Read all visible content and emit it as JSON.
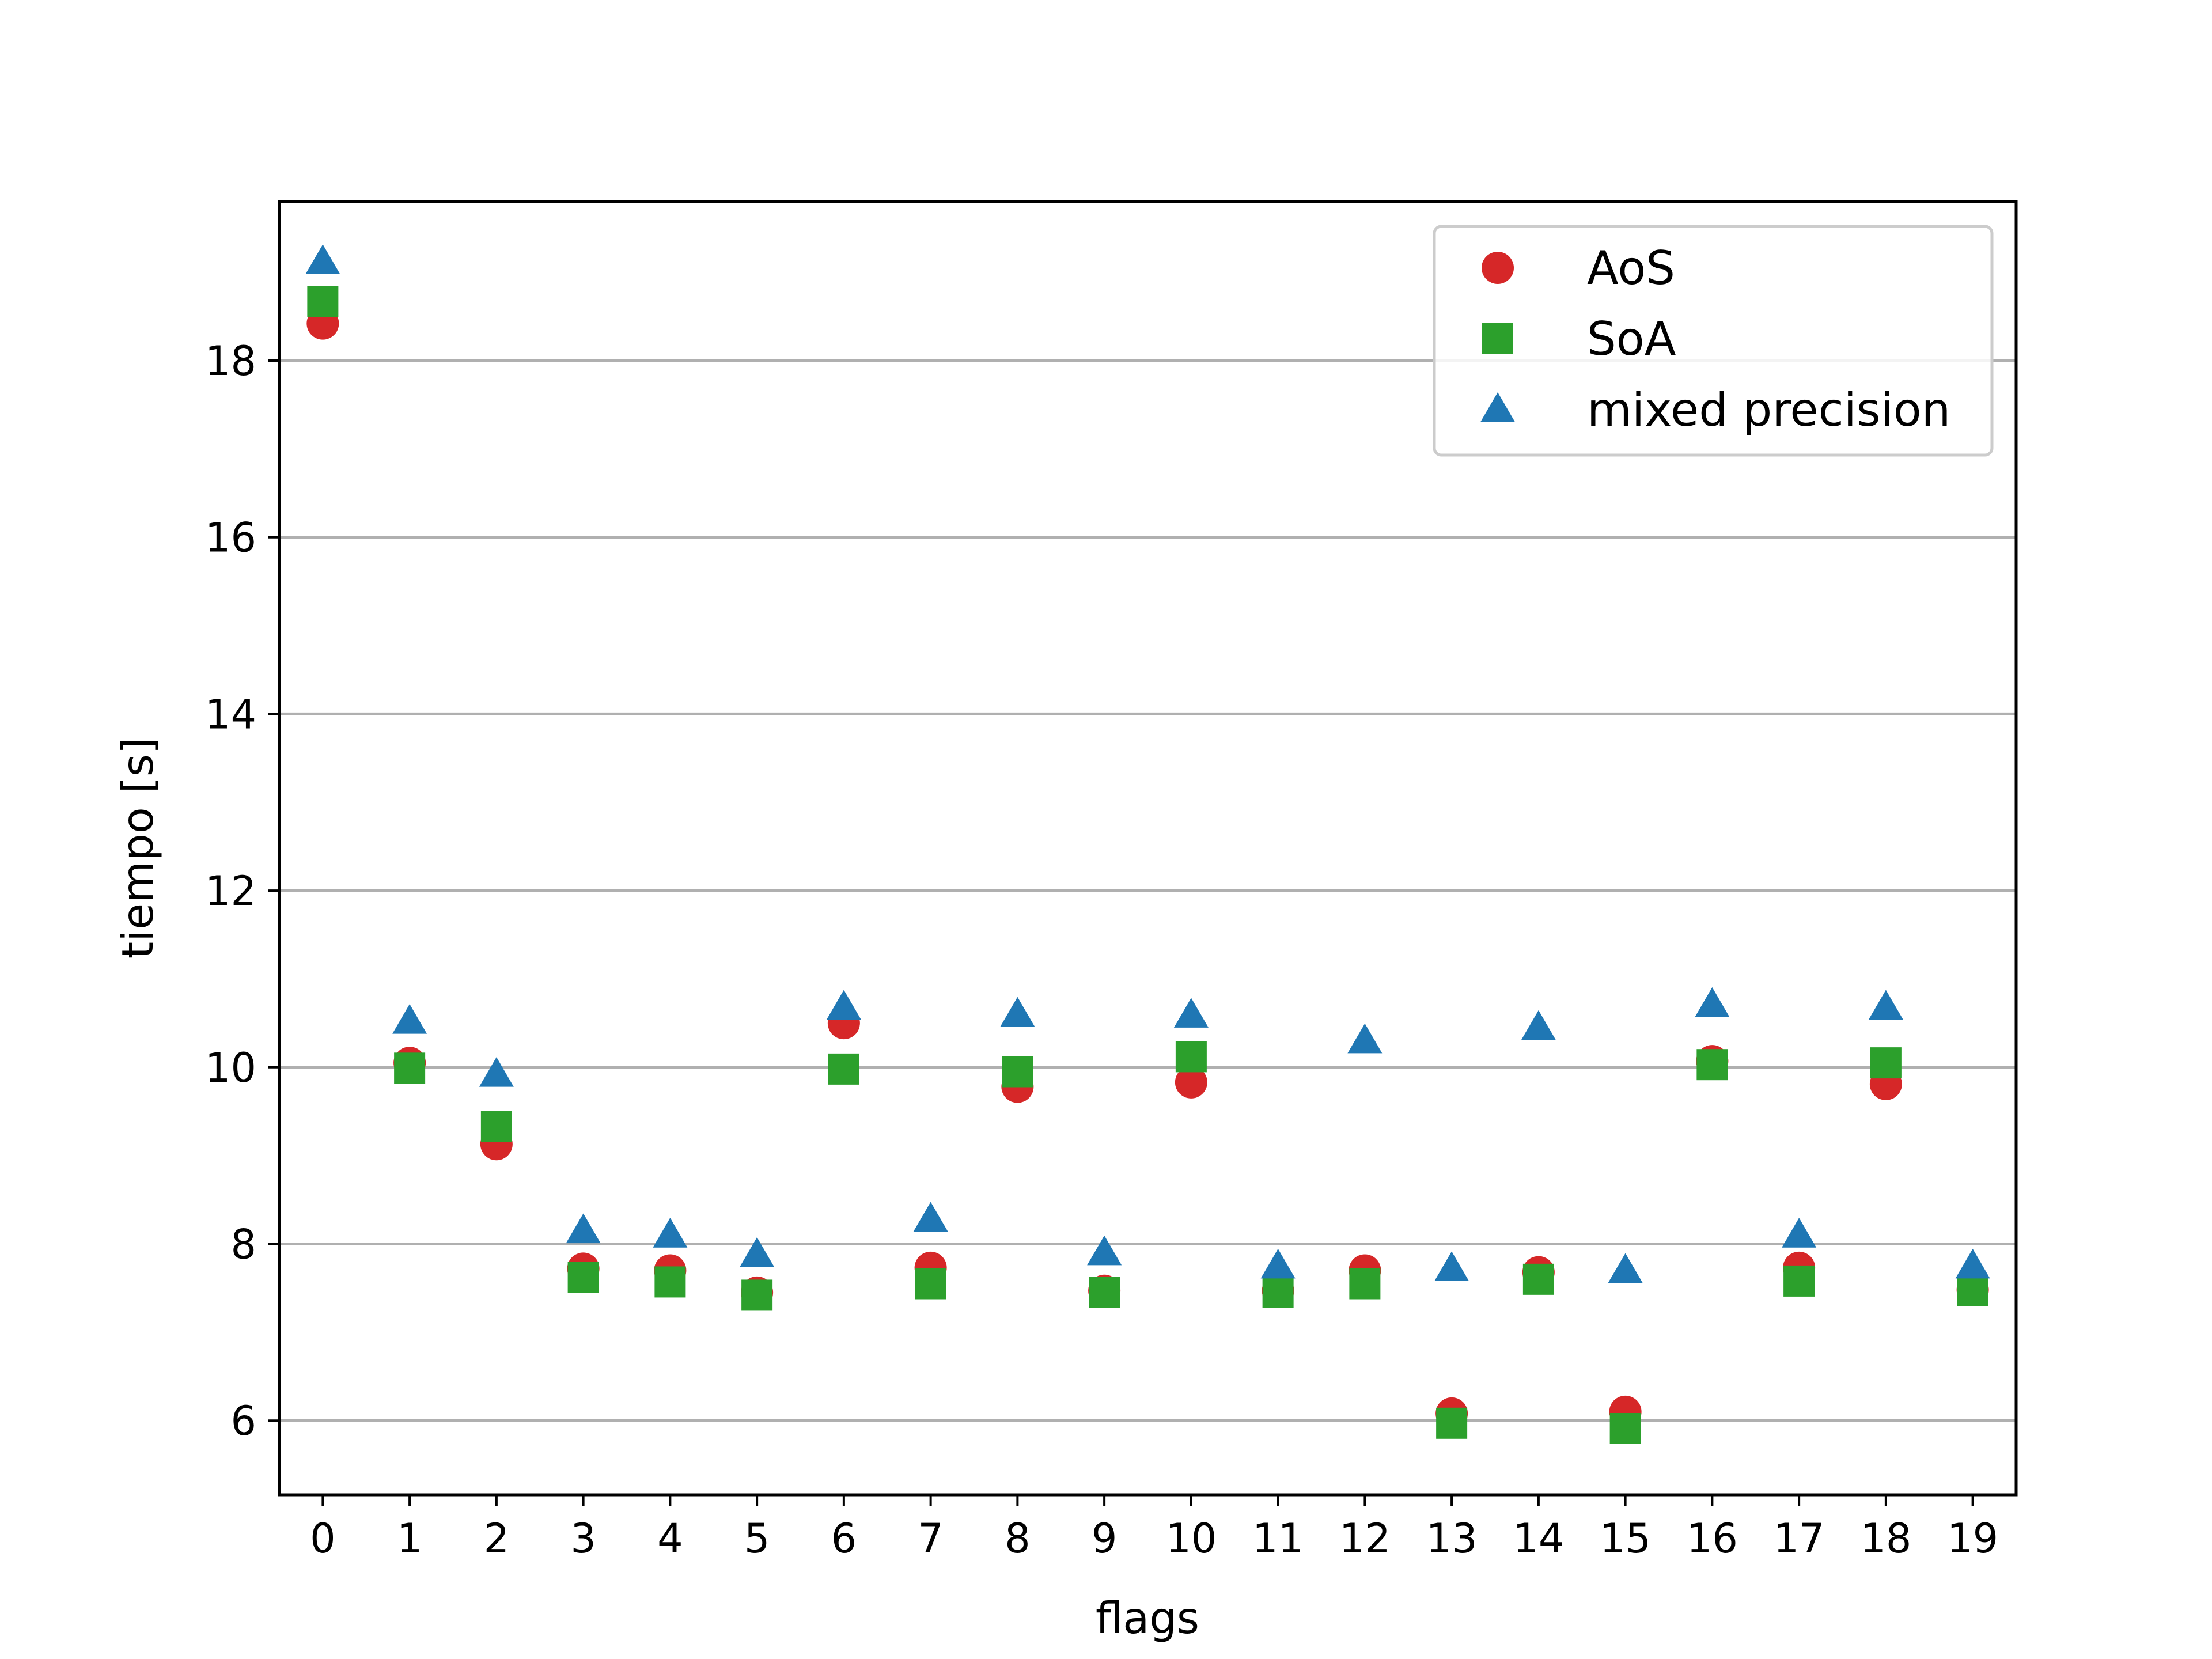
{
  "chart_data": {
    "type": "scatter",
    "title": "",
    "xlabel": "flags",
    "ylabel": "tiempo [s]",
    "x": [
      0,
      1,
      2,
      3,
      4,
      5,
      6,
      7,
      8,
      9,
      10,
      11,
      12,
      13,
      14,
      15,
      16,
      17,
      18,
      19
    ],
    "x_ticks": [
      0,
      1,
      2,
      3,
      4,
      5,
      6,
      7,
      8,
      9,
      10,
      11,
      12,
      13,
      14,
      15,
      16,
      17,
      18,
      19
    ],
    "y_ticks": [
      6,
      8,
      10,
      12,
      14,
      16,
      18
    ],
    "xlim": [
      -0.5,
      19.5
    ],
    "ylim": [
      5.16,
      19.8
    ],
    "grid": "y",
    "legend_position": "top-right",
    "series": [
      {
        "name": "AoS",
        "marker": "circle",
        "color": "#d62728",
        "values": [
          18.42,
          10.05,
          9.13,
          7.72,
          7.7,
          7.45,
          10.5,
          7.73,
          9.78,
          7.47,
          9.83,
          7.47,
          7.7,
          6.08,
          7.68,
          6.1,
          10.07,
          7.73,
          9.81,
          7.48
        ]
      },
      {
        "name": "SoA",
        "marker": "square",
        "color": "#2ca02c",
        "values": [
          18.67,
          9.99,
          9.33,
          7.62,
          7.57,
          7.42,
          9.98,
          7.55,
          9.95,
          7.45,
          10.12,
          7.45,
          7.55,
          5.97,
          7.6,
          5.91,
          10.03,
          7.58,
          10.05,
          7.47
        ]
      },
      {
        "name": "mixed precision",
        "marker": "triangle",
        "color": "#1f77b4",
        "values": [
          19.12,
          10.52,
          9.92,
          8.15,
          8.1,
          7.88,
          10.68,
          8.28,
          10.6,
          7.9,
          10.59,
          7.75,
          10.3,
          7.72,
          10.45,
          7.7,
          10.71,
          8.1,
          10.68,
          7.75
        ]
      }
    ]
  }
}
